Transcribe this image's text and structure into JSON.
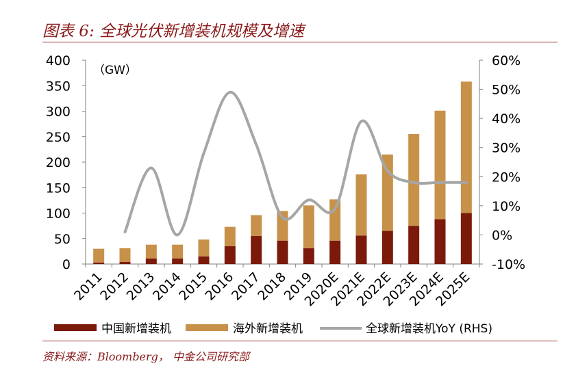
{
  "title": "图表 6:  全球光伏新增装机规模及增速",
  "source": "资料来源：Bloomberg，  中金公司研究部",
  "chart_data": {
    "type": "bar",
    "stacked": true,
    "unit_label": "（GW）",
    "categories": [
      "2011",
      "2012",
      "2013",
      "2014",
      "2015",
      "2016",
      "2017",
      "2018",
      "2019",
      "2020E",
      "2021E",
      "2022E",
      "2023E",
      "2024E",
      "2025E"
    ],
    "series": [
      {
        "name": "中国新增装机",
        "axis": "left",
        "color": "#7b1a0a",
        "values": [
          3,
          4,
          11,
          11,
          15,
          35,
          55,
          46,
          31,
          46,
          56,
          65,
          75,
          88,
          100
        ]
      },
      {
        "name": "海外新增装机",
        "axis": "left",
        "color": "#c8914a",
        "values": [
          27,
          27,
          27,
          27,
          33,
          38,
          41,
          58,
          84,
          81,
          120,
          150,
          180,
          213,
          258
        ]
      },
      {
        "name": "全球新增装机YoY (RHS)",
        "axis": "right",
        "type": "line",
        "color": "#a6a6a6",
        "values": [
          null,
          1,
          23,
          0,
          28,
          49,
          31,
          6,
          12,
          9,
          39,
          22,
          18,
          18,
          18
        ]
      }
    ],
    "y_left": {
      "min": 0,
      "max": 400,
      "ticks": [
        0,
        50,
        100,
        150,
        200,
        250,
        300,
        350,
        400
      ]
    },
    "y_right": {
      "min": -10,
      "max": 60,
      "ticks": [
        "-10%",
        "0%",
        "10%",
        "20%",
        "30%",
        "40%",
        "50%",
        "60%"
      ]
    },
    "legend_position": "bottom"
  }
}
